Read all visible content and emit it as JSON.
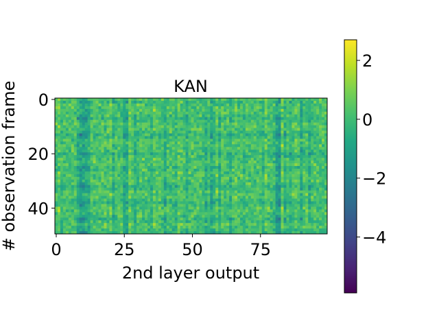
{
  "chart_data": {
    "type": "heatmap",
    "title": "KAN",
    "xlabel": "2nd layer output",
    "ylabel": "# observation frame",
    "n_cols": 100,
    "n_rows": 50,
    "xlim": [
      -0.5,
      99.5
    ],
    "ylim": [
      49.5,
      -0.5
    ],
    "xticks": [
      0,
      25,
      50,
      75
    ],
    "yticks": [
      0,
      20,
      40
    ],
    "colormap": "viridis",
    "colorbar": {
      "vmin": -5.9,
      "vmax": 2.7,
      "ticks": [
        2,
        0,
        -2,
        -4
      ],
      "tick_labels": [
        "2",
        "0",
        "−2",
        "−4"
      ]
    },
    "column_bias": {
      "cols": [
        1,
        2,
        8,
        9,
        10,
        11,
        12,
        20,
        21,
        25,
        26,
        27,
        29,
        35,
        36,
        40,
        44,
        45,
        48,
        55,
        57,
        58,
        59,
        60,
        61,
        64,
        66,
        69,
        76,
        77,
        80,
        81,
        82,
        83,
        84,
        86,
        88,
        90,
        93
      ],
      "values": [
        0.4,
        -0.3,
        -0.6,
        -0.9,
        -1.0,
        -0.7,
        -0.6,
        0.6,
        -0.5,
        -0.7,
        -0.6,
        0.5,
        -0.5,
        -0.4,
        0.4,
        -0.6,
        -0.3,
        0.4,
        -0.4,
        -0.5,
        -0.7,
        -0.4,
        0.3,
        -0.5,
        0.4,
        -0.5,
        0.3,
        -0.3,
        -0.3,
        0.5,
        -0.3,
        -0.9,
        -1.2,
        0.6,
        -0.5,
        -0.4,
        0.4,
        -0.6,
        -0.5
      ]
    },
    "row_bias": {
      "rows": [
        1,
        6,
        7,
        8,
        12,
        13,
        14,
        19,
        20,
        21,
        25,
        26,
        31,
        32,
        33,
        37,
        38,
        39,
        43,
        44,
        45,
        48,
        49
      ],
      "values": [
        -0.5,
        -0.3,
        -0.8,
        -0.4,
        -0.3,
        -0.8,
        -0.4,
        -0.3,
        -0.8,
        -0.4,
        -0.6,
        -0.4,
        -0.3,
        -0.8,
        -0.4,
        -0.3,
        -0.8,
        -0.4,
        -0.3,
        -0.7,
        -0.4,
        -0.3,
        -0.7
      ]
    }
  }
}
